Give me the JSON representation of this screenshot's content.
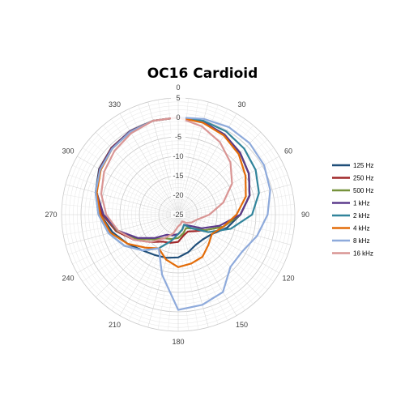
{
  "chart_data": {
    "type": "line",
    "subtype": "radar",
    "title": "OC16 Cardioid",
    "angle_labels": [
      "0",
      "30",
      "60",
      "90",
      "120",
      "150",
      "180",
      "210",
      "240",
      "270",
      "300",
      "330"
    ],
    "angles": [
      0,
      15,
      30,
      45,
      60,
      75,
      90,
      105,
      120,
      135,
      150,
      165,
      180,
      195,
      210,
      225,
      240,
      255,
      270,
      285,
      300,
      315,
      330,
      345
    ],
    "radial_ticks": [
      5,
      0,
      -5,
      -10,
      -15,
      -20,
      -25
    ],
    "rlim": [
      -25,
      5
    ],
    "grid": true,
    "legend_position": "right",
    "series": [
      {
        "name": "125 Hz",
        "color": "#1f4e79",
        "values": [
          0,
          -0.3,
          -1.2,
          -2.5,
          -4,
          -6,
          -9,
          -12,
          -15,
          -16,
          -16,
          -15,
          -14,
          -13.5,
          -13,
          -12,
          -10,
          -7.5,
          -5,
          -3,
          -1.5,
          -0.7,
          -0.2,
          0
        ]
      },
      {
        "name": "250 Hz",
        "color": "#a0282a",
        "values": [
          0,
          -0.3,
          -1.2,
          -2.5,
          -4,
          -6,
          -9,
          -13,
          -17,
          -19,
          -20,
          -19.5,
          -18,
          -17.5,
          -17,
          -15,
          -12,
          -8.5,
          -5.5,
          -3.2,
          -1.6,
          -0.7,
          -0.2,
          0
        ]
      },
      {
        "name": "500 Hz",
        "color": "#76923c",
        "values": [
          0,
          -0.3,
          -1.2,
          -2.5,
          -4,
          -6,
          -9,
          -13,
          -17,
          -20,
          -21,
          -20,
          -19,
          -18.5,
          -18,
          -16,
          -12.5,
          -8.8,
          -5.8,
          -3.3,
          -1.7,
          -0.8,
          -0.2,
          0
        ]
      },
      {
        "name": "1 kHz",
        "color": "#5b3a8c",
        "values": [
          0,
          -0.3,
          -1.2,
          -2.5,
          -4,
          -6,
          -9,
          -14,
          -18,
          -21,
          -22,
          -21,
          -20,
          -19.5,
          -19,
          -16.5,
          -13,
          -9,
          -5.8,
          -3.3,
          -1.7,
          -0.8,
          -0.2,
          0
        ]
      },
      {
        "name": "2 kHz",
        "color": "#31849b",
        "values": [
          0,
          0,
          -0.3,
          -1,
          -2,
          -3.5,
          -6,
          -11,
          -16,
          -20,
          -22,
          -21,
          -20,
          -18,
          -15,
          -12,
          -9,
          -6.5,
          -4.5,
          -3,
          -1.8,
          -1,
          -0.4,
          0
        ]
      },
      {
        "name": "4 kHz",
        "color": "#e36c09",
        "values": [
          0,
          -0.5,
          -1.5,
          -3,
          -5,
          -7,
          -10,
          -13,
          -15,
          -14,
          -12.5,
          -12,
          -11.5,
          -13,
          -15,
          -13,
          -10,
          -7,
          -5,
          -3.3,
          -2,
          -1,
          -0.4,
          0
        ]
      },
      {
        "name": "8 kHz",
        "color": "#8eaadb",
        "values": [
          0,
          0.5,
          1,
          1,
          0.5,
          -0.5,
          -2,
          -4,
          -6,
          -6,
          -2,
          -1,
          -0.5,
          -9,
          -15,
          -12,
          -9,
          -6.5,
          -4.5,
          -3,
          -1.8,
          -1,
          -0.4,
          0
        ]
      },
      {
        "name": "16 kHz",
        "color": "#d99594",
        "values": [
          0,
          -1.5,
          -3.5,
          -6,
          -9,
          -13,
          -17,
          -20,
          -21,
          -22,
          -23,
          -22.5,
          -22,
          -20,
          -18,
          -15,
          -12,
          -9,
          -6.5,
          -4.5,
          -3,
          -1.8,
          -0.8,
          0
        ]
      }
    ]
  }
}
